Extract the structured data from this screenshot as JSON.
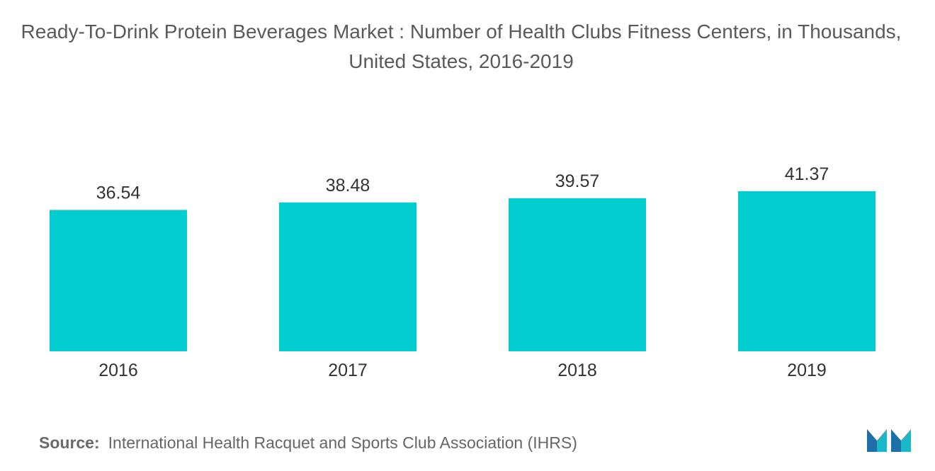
{
  "title": "Ready-To-Drink Protein Beverages Market : Number of Health Clubs Fitness Centers, in Thousands, United States, 2016-2019",
  "source": {
    "label": "Source:",
    "text": "International Health Racquet and Sports Club Association (IHRS)"
  },
  "logo": {
    "icon": "mordor-intelligence-logo",
    "colors": [
      "#1e6fa8",
      "#19b8c6"
    ]
  },
  "chart_data": {
    "type": "bar",
    "title": "Ready-To-Drink Protein Beverages Market : Number of Health Clubs Fitness Centers, in Thousands, United States, 2016-2019",
    "xlabel": "",
    "ylabel": "",
    "categories": [
      "2016",
      "2017",
      "2018",
      "2019"
    ],
    "values": [
      36.54,
      38.48,
      39.57,
      41.37
    ],
    "value_labels": [
      "36.54",
      "38.48",
      "39.57",
      "41.37"
    ],
    "ylim": [
      0,
      41.37
    ],
    "grid": false,
    "legend": "none",
    "bar_color": "#00cdd0"
  }
}
